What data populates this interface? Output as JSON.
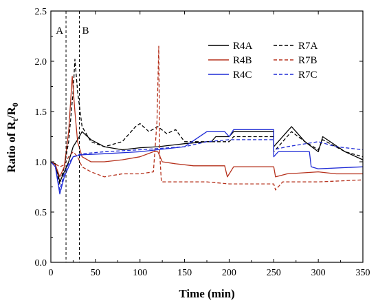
{
  "chart_data": {
    "type": "line",
    "title": "",
    "xlabel": "Time (min)",
    "ylabel_main": "Ratio of R",
    "ylabel_sub1": "t",
    "ylabel_mid": "/R",
    "ylabel_sub2": "0",
    "xlim": [
      0,
      350
    ],
    "ylim": [
      0.0,
      2.5
    ],
    "x_ticks": [
      0,
      50,
      100,
      150,
      200,
      250,
      300,
      350
    ],
    "x_tick_labels": [
      "0",
      "50",
      "100",
      "150",
      "200",
      "250",
      "300",
      "350"
    ],
    "y_ticks": [
      0.0,
      0.5,
      1.0,
      1.5,
      2.0,
      2.5
    ],
    "y_tick_labels": [
      "0.0",
      "0.5",
      "1.0",
      "1.5",
      "2.0",
      "2.5"
    ],
    "grid": false,
    "legend_position": "top-right",
    "markers": [
      {
        "label": "A",
        "x": 17
      },
      {
        "label": "B",
        "x": 32
      }
    ],
    "series": [
      {
        "name": "R4A",
        "color": "#000000",
        "dash": "solid",
        "points": [
          [
            0,
            1.0
          ],
          [
            5,
            0.98
          ],
          [
            10,
            0.8
          ],
          [
            15,
            0.9
          ],
          [
            20,
            1.0
          ],
          [
            25,
            1.15
          ],
          [
            30,
            1.22
          ],
          [
            35,
            1.3
          ],
          [
            45,
            1.22
          ],
          [
            60,
            1.15
          ],
          [
            80,
            1.12
          ],
          [
            100,
            1.14
          ],
          [
            120,
            1.15
          ],
          [
            150,
            1.18
          ],
          [
            175,
            1.2
          ],
          [
            180,
            1.2
          ],
          [
            185,
            1.25
          ],
          [
            200,
            1.25
          ],
          [
            205,
            1.3
          ],
          [
            250,
            1.3
          ],
          [
            250,
            1.15
          ],
          [
            265,
            1.3
          ],
          [
            270,
            1.35
          ],
          [
            285,
            1.2
          ],
          [
            300,
            1.1
          ],
          [
            305,
            1.25
          ],
          [
            330,
            1.1
          ],
          [
            350,
            1.02
          ]
        ]
      },
      {
        "name": "R7A",
        "color": "#000000",
        "dash": "dashed",
        "points": [
          [
            0,
            1.0
          ],
          [
            5,
            0.97
          ],
          [
            10,
            0.78
          ],
          [
            15,
            0.95
          ],
          [
            20,
            1.2
          ],
          [
            25,
            1.7
          ],
          [
            27,
            2.02
          ],
          [
            30,
            1.7
          ],
          [
            35,
            1.35
          ],
          [
            45,
            1.2
          ],
          [
            60,
            1.15
          ],
          [
            80,
            1.2
          ],
          [
            95,
            1.35
          ],
          [
            100,
            1.38
          ],
          [
            110,
            1.3
          ],
          [
            120,
            1.35
          ],
          [
            130,
            1.28
          ],
          [
            140,
            1.32
          ],
          [
            150,
            1.2
          ],
          [
            175,
            1.2
          ],
          [
            200,
            1.2
          ],
          [
            205,
            1.25
          ],
          [
            250,
            1.25
          ],
          [
            250,
            1.1
          ],
          [
            265,
            1.25
          ],
          [
            270,
            1.3
          ],
          [
            285,
            1.2
          ],
          [
            300,
            1.12
          ],
          [
            305,
            1.22
          ],
          [
            330,
            1.1
          ],
          [
            350,
            1.05
          ]
        ]
      },
      {
        "name": "R4B",
        "color": "#b5301b",
        "dash": "solid",
        "points": [
          [
            0,
            1.0
          ],
          [
            5,
            0.97
          ],
          [
            10,
            0.85
          ],
          [
            15,
            0.95
          ],
          [
            20,
            1.3
          ],
          [
            24,
            1.85
          ],
          [
            27,
            1.5
          ],
          [
            30,
            1.2
          ],
          [
            35,
            1.05
          ],
          [
            45,
            1.0
          ],
          [
            60,
            1.0
          ],
          [
            80,
            1.02
          ],
          [
            100,
            1.05
          ],
          [
            115,
            1.1
          ],
          [
            120,
            1.1
          ],
          [
            125,
            1.0
          ],
          [
            140,
            0.98
          ],
          [
            160,
            0.96
          ],
          [
            175,
            0.96
          ],
          [
            195,
            0.96
          ],
          [
            198,
            0.85
          ],
          [
            205,
            0.95
          ],
          [
            250,
            0.95
          ],
          [
            252,
            0.85
          ],
          [
            265,
            0.88
          ],
          [
            300,
            0.9
          ],
          [
            320,
            0.88
          ],
          [
            350,
            0.88
          ]
        ]
      },
      {
        "name": "R7B",
        "color": "#b5301b",
        "dash": "dashed",
        "points": [
          [
            0,
            1.0
          ],
          [
            5,
            0.98
          ],
          [
            10,
            0.95
          ],
          [
            15,
            0.97
          ],
          [
            20,
            1.05
          ],
          [
            25,
            1.1
          ],
          [
            30,
            1.05
          ],
          [
            35,
            0.95
          ],
          [
            45,
            0.9
          ],
          [
            60,
            0.85
          ],
          [
            80,
            0.88
          ],
          [
            100,
            0.88
          ],
          [
            115,
            0.9
          ],
          [
            119,
            1.4
          ],
          [
            121,
            2.15
          ],
          [
            122,
            1.1
          ],
          [
            124,
            0.8
          ],
          [
            140,
            0.8
          ],
          [
            175,
            0.8
          ],
          [
            200,
            0.78
          ],
          [
            250,
            0.78
          ],
          [
            252,
            0.72
          ],
          [
            260,
            0.8
          ],
          [
            300,
            0.8
          ],
          [
            350,
            0.82
          ]
        ]
      },
      {
        "name": "R4C",
        "color": "#1f2bd6",
        "dash": "solid",
        "points": [
          [
            0,
            1.0
          ],
          [
            5,
            0.95
          ],
          [
            10,
            0.68
          ],
          [
            15,
            0.85
          ],
          [
            20,
            0.95
          ],
          [
            25,
            1.05
          ],
          [
            35,
            1.07
          ],
          [
            60,
            1.08
          ],
          [
            100,
            1.1
          ],
          [
            150,
            1.15
          ],
          [
            175,
            1.3
          ],
          [
            195,
            1.3
          ],
          [
            200,
            1.25
          ],
          [
            205,
            1.32
          ],
          [
            250,
            1.32
          ],
          [
            250,
            1.05
          ],
          [
            255,
            1.1
          ],
          [
            290,
            1.1
          ],
          [
            292,
            0.95
          ],
          [
            300,
            0.93
          ],
          [
            350,
            0.95
          ]
        ]
      },
      {
        "name": "R7C",
        "color": "#1f2bd6",
        "dash": "dashed",
        "points": [
          [
            0,
            1.0
          ],
          [
            5,
            0.95
          ],
          [
            10,
            0.72
          ],
          [
            15,
            0.88
          ],
          [
            20,
            0.98
          ],
          [
            25,
            1.05
          ],
          [
            35,
            1.08
          ],
          [
            60,
            1.1
          ],
          [
            100,
            1.12
          ],
          [
            150,
            1.15
          ],
          [
            175,
            1.2
          ],
          [
            200,
            1.22
          ],
          [
            250,
            1.22
          ],
          [
            250,
            1.12
          ],
          [
            265,
            1.15
          ],
          [
            300,
            1.2
          ],
          [
            320,
            1.15
          ],
          [
            350,
            1.12
          ]
        ]
      }
    ]
  }
}
